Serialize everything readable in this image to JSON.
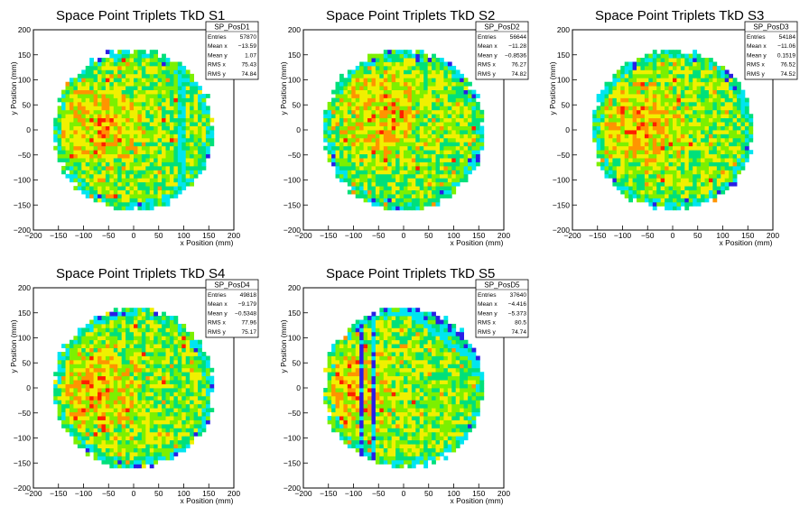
{
  "chart_data": [
    {
      "type": "heatmap",
      "title": "Space Point Triplets TkD S1",
      "xlabel": "x Position (mm)",
      "ylabel": "y Position (mm)",
      "xlim": [
        -200,
        200
      ],
      "ylim": [
        -200,
        200
      ],
      "xticks": [
        -200,
        -150,
        -100,
        -50,
        0,
        50,
        100,
        150,
        200
      ],
      "yticks": [
        -200,
        -150,
        -100,
        -50,
        0,
        50,
        100,
        150,
        200
      ],
      "stats": {
        "name": "SP_PosD1",
        "rows": [
          {
            "label": "Entries",
            "value": "57870"
          },
          {
            "label": "Mean x",
            "value": "−13.59"
          },
          {
            "label": "Mean y",
            "value": "1.07"
          },
          {
            "label": "RMS x",
            "value": "75.43"
          },
          {
            "label": "RMS y",
            "value": "74.84"
          }
        ]
      },
      "palette": [
        "#2a1ee6",
        "#00e5f0",
        "#00e07a",
        "#7cf000",
        "#f0f000",
        "#ff9400",
        "#ff1e00"
      ],
      "features": {
        "radius": 160,
        "vertical_band": [
          85,
          105
        ],
        "seed": 11,
        "warm_center": [
          -70,
          10
        ]
      }
    },
    {
      "type": "heatmap",
      "title": "Space Point Triplets TkD S2",
      "xlabel": "x Position (mm)",
      "ylabel": "y Position (mm)",
      "xlim": [
        -200,
        200
      ],
      "ylim": [
        -200,
        200
      ],
      "xticks": [
        -200,
        -150,
        -100,
        -50,
        0,
        50,
        100,
        150,
        200
      ],
      "yticks": [
        -200,
        -150,
        -100,
        -50,
        0,
        50,
        100,
        150,
        200
      ],
      "stats": {
        "name": "SP_PosD2",
        "rows": [
          {
            "label": "Entries",
            "value": "56644"
          },
          {
            "label": "Mean x",
            "value": "−11.28"
          },
          {
            "label": "Mean y",
            "value": "−0.8536"
          },
          {
            "label": "RMS x",
            "value": "76.27"
          },
          {
            "label": "RMS y",
            "value": "74.82"
          }
        ]
      },
      "palette": [
        "#2a1ee6",
        "#00e5f0",
        "#00e07a",
        "#7cf000",
        "#f0f000",
        "#ff9400",
        "#ff1e00"
      ],
      "features": {
        "radius": 160,
        "seed": 23,
        "warm_center": [
          -40,
          30
        ]
      }
    },
    {
      "type": "heatmap",
      "title": "Space Point Triplets TkD S3",
      "xlabel": "x Position (mm)",
      "ylabel": "y Position (mm)",
      "xlim": [
        -200,
        200
      ],
      "ylim": [
        -200,
        200
      ],
      "xticks": [
        -200,
        -150,
        -100,
        -50,
        0,
        50,
        100,
        150,
        200
      ],
      "yticks": [
        -200,
        -150,
        -100,
        -50,
        0,
        50,
        100,
        150,
        200
      ],
      "stats": {
        "name": "SP_PosD3",
        "rows": [
          {
            "label": "Entries",
            "value": "54184"
          },
          {
            "label": "Mean x",
            "value": "−11.06"
          },
          {
            "label": "Mean y",
            "value": "0.1519"
          },
          {
            "label": "RMS x",
            "value": "76.52"
          },
          {
            "label": "RMS y",
            "value": "74.52"
          }
        ]
      },
      "palette": [
        "#2a1ee6",
        "#00e5f0",
        "#00e07a",
        "#7cf000",
        "#f0f000",
        "#ff9400",
        "#ff1e00"
      ],
      "features": {
        "radius": 160,
        "seed": 37,
        "warm_center": [
          -60,
          10
        ]
      }
    },
    {
      "type": "heatmap",
      "title": "Space Point Triplets TkD S4",
      "xlabel": "x Position (mm)",
      "ylabel": "y Position (mm)",
      "xlim": [
        -200,
        200
      ],
      "ylim": [
        -200,
        200
      ],
      "xticks": [
        -200,
        -150,
        -100,
        -50,
        0,
        50,
        100,
        150,
        200
      ],
      "yticks": [
        -200,
        -150,
        -100,
        -50,
        0,
        50,
        100,
        150,
        200
      ],
      "stats": {
        "name": "SP_PosD4",
        "rows": [
          {
            "label": "Entries",
            "value": "49818"
          },
          {
            "label": "Mean x",
            "value": "−9.179"
          },
          {
            "label": "Mean y",
            "value": "−0.5348"
          },
          {
            "label": "RMS x",
            "value": "77.96"
          },
          {
            "label": "RMS y",
            "value": "75.17"
          }
        ]
      },
      "palette": [
        "#2a1ee6",
        "#00e5f0",
        "#00e07a",
        "#7cf000",
        "#f0f000",
        "#ff9400",
        "#ff1e00"
      ],
      "features": {
        "radius": 160,
        "seed": 41,
        "warm_center": [
          -70,
          0
        ]
      }
    },
    {
      "type": "heatmap",
      "title": "Space Point Triplets TkD S5",
      "xlabel": "x Position (mm)",
      "ylabel": "y Position (mm)",
      "xlim": [
        -200,
        200
      ],
      "ylim": [
        -200,
        200
      ],
      "xticks": [
        -200,
        -150,
        -100,
        -50,
        0,
        50,
        100,
        150,
        200
      ],
      "yticks": [
        -200,
        -150,
        -100,
        -50,
        0,
        50,
        100,
        150,
        200
      ],
      "stats": {
        "name": "SP_PosD5",
        "rows": [
          {
            "label": "Entries",
            "value": "37640"
          },
          {
            "label": "Mean x",
            "value": "−4.416"
          },
          {
            "label": "Mean y",
            "value": "−5.373"
          },
          {
            "label": "RMS x",
            "value": "80.5"
          },
          {
            "label": "RMS y",
            "value": "74.74"
          }
        ]
      },
      "palette": [
        "#2a1ee6",
        "#00e5f0",
        "#00e07a",
        "#7cf000",
        "#f0f000",
        "#ff9400",
        "#ff1e00"
      ],
      "features": {
        "radius": 160,
        "seed": 53,
        "warm_center": [
          -100,
          0
        ],
        "dead_strips": [
          -85,
          -60
        ],
        "diagonal_gap": true
      }
    }
  ]
}
